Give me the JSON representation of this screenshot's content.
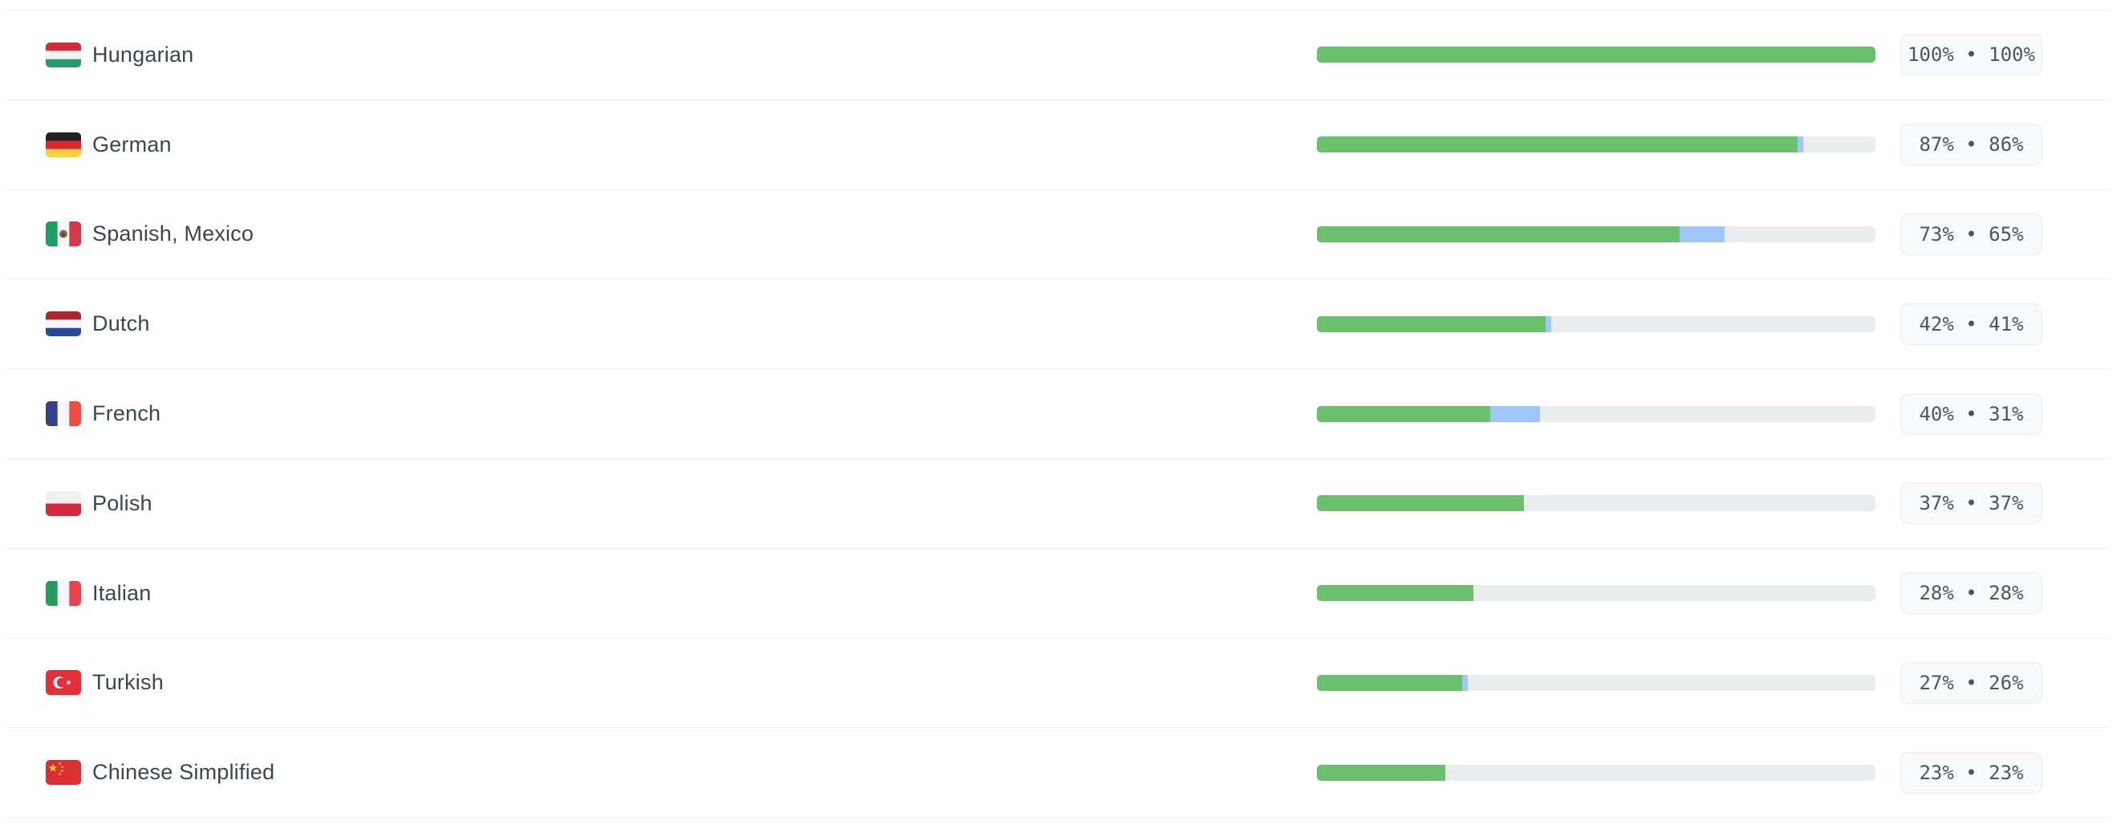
{
  "colors": {
    "translated_green": "#6bc06e",
    "pending_blue": "#9fc7fa",
    "bar_track": "#eaedf0",
    "badge_bg": "#f8f9fa",
    "badge_border": "#eceef0",
    "badge_text": "#4d565e",
    "label_text": "#3a4750",
    "divider": "#eef0f1"
  },
  "chart_data": {
    "type": "bar",
    "title": "",
    "categories": [
      "Hungarian",
      "German",
      "Spanish, Mexico",
      "Dutch",
      "French",
      "Polish",
      "Italian",
      "Turkish",
      "Chinese Simplified"
    ],
    "series": [
      {
        "name": "translated-green",
        "values": [
          100,
          86,
          65,
          41,
          31,
          37,
          28,
          26,
          23
        ]
      },
      {
        "name": "pending-blue",
        "values": [
          0,
          1,
          8,
          1,
          9,
          0,
          0,
          1,
          0
        ]
      }
    ],
    "value_range": [
      0,
      100
    ],
    "unit": "%"
  },
  "rows": [
    {
      "language": "Hungarian",
      "badge": "100% • 100%",
      "total_percent": 100,
      "translated_percent": 100,
      "flag": {
        "name": "flag-hungary",
        "type": "hstripes",
        "colors": [
          "#d02c39",
          "#f2f3f3",
          "#2a9a71"
        ]
      }
    },
    {
      "language": "German",
      "badge": "87% • 86%",
      "total_percent": 87,
      "translated_percent": 86,
      "flag": {
        "name": "flag-germany",
        "type": "hstripes",
        "colors": [
          "#222220",
          "#d92632",
          "#fdd041"
        ]
      }
    },
    {
      "language": "Spanish, Mexico",
      "badge": "73% • 65%",
      "total_percent": 73,
      "translated_percent": 65,
      "flag": {
        "name": "flag-mexico",
        "type": "vstripes",
        "colors": [
          "#1e9e5f",
          "#f5f6f7",
          "#d5394a"
        ],
        "emblem": "#8a6a40"
      }
    },
    {
      "language": "Dutch",
      "badge": "42% • 41%",
      "total_percent": 42,
      "translated_percent": 41,
      "flag": {
        "name": "flag-netherlands",
        "type": "hstripes",
        "colors": [
          "#ae2330",
          "#f5f6f7",
          "#27489b"
        ]
      }
    },
    {
      "language": "French",
      "badge": "40% • 31%",
      "total_percent": 40,
      "translated_percent": 31,
      "flag": {
        "name": "flag-france",
        "type": "vstripes",
        "colors": [
          "#35418a",
          "#f5f6f7",
          "#ef4b44"
        ]
      }
    },
    {
      "language": "Polish",
      "badge": "37% • 37%",
      "total_percent": 37,
      "translated_percent": 37,
      "flag": {
        "name": "flag-poland",
        "type": "hstripes",
        "colors": [
          "#eef0f1",
          "#d4293f"
        ]
      }
    },
    {
      "language": "Italian",
      "badge": "28% • 28%",
      "total_percent": 28,
      "translated_percent": 28,
      "flag": {
        "name": "flag-italy",
        "type": "vstripes",
        "colors": [
          "#279b5c",
          "#f5f6f7",
          "#e8434f"
        ]
      }
    },
    {
      "language": "Turkish",
      "badge": "27% • 26%",
      "total_percent": 27,
      "translated_percent": 26,
      "flag": {
        "name": "flag-turkey",
        "type": "crescent",
        "colors": [
          "#e22f3a",
          "#ffffff"
        ]
      }
    },
    {
      "language": "Chinese Simplified",
      "badge": "23% • 23%",
      "total_percent": 23,
      "translated_percent": 23,
      "flag": {
        "name": "flag-china",
        "type": "stars",
        "colors": [
          "#dd2f2f",
          "#ffd23e"
        ]
      }
    }
  ]
}
